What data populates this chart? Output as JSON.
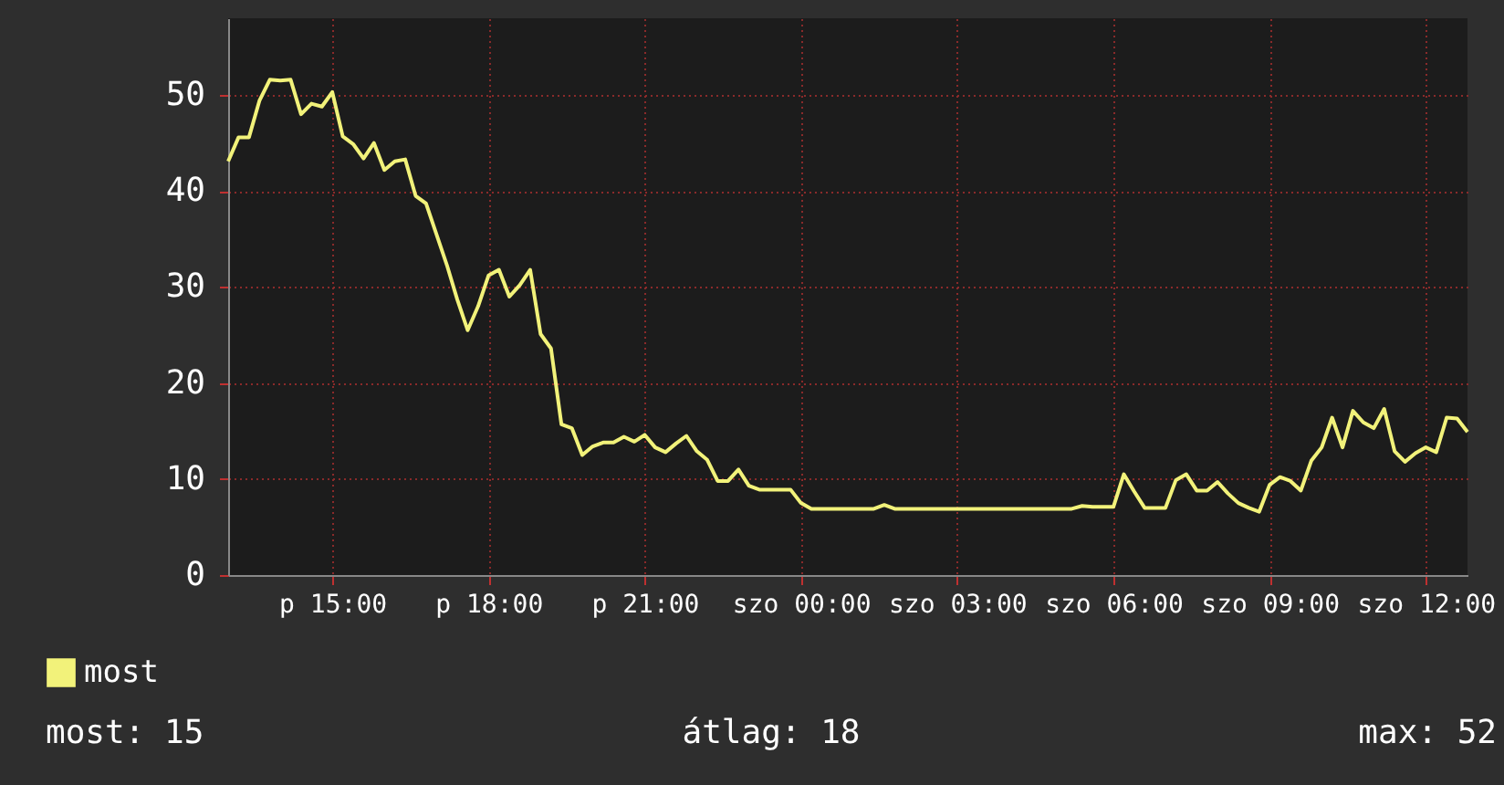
{
  "chart_data": {
    "type": "line",
    "categories": [
      null,
      null,
      null,
      null,
      null,
      null,
      null,
      null,
      null,
      null,
      "p 15:00",
      null,
      null,
      null,
      null,
      null,
      null,
      null,
      null,
      null,
      null,
      null,
      null,
      null,
      null,
      "p 18:00",
      null,
      null,
      null,
      null,
      null,
      null,
      null,
      null,
      null,
      null,
      null,
      null,
      null,
      null,
      "p 21:00",
      null,
      null,
      null,
      null,
      null,
      null,
      null,
      null,
      null,
      null,
      null,
      null,
      null,
      null,
      "szo 00:00",
      null,
      null,
      null,
      null,
      null,
      null,
      null,
      null,
      null,
      null,
      null,
      null,
      null,
      null,
      "szo 03:00",
      null,
      null,
      null,
      null,
      null,
      null,
      null,
      null,
      null,
      null,
      null,
      null,
      null,
      null,
      "szo 06:00",
      null,
      null,
      null,
      null,
      null,
      null,
      null,
      null,
      null,
      null,
      null,
      null,
      null,
      null,
      "szo 09:00",
      null,
      null,
      null,
      null,
      null,
      null,
      null,
      null,
      null,
      null,
      null,
      null,
      null,
      null,
      "szo 12:00",
      null,
      null,
      null,
      null
    ],
    "series": [
      {
        "name": "most",
        "color": "#f2f27a",
        "values": [
          43.1,
          45.6,
          45.6,
          49.4,
          51.6,
          51.5,
          51.6,
          48.0,
          49.1,
          48.8,
          50.3,
          45.7,
          44.9,
          43.4,
          45.0,
          42.2,
          43.1,
          43.3,
          39.5,
          38.7,
          35.5,
          32.3,
          28.7,
          25.5,
          28.0,
          31.2,
          31.8,
          29.0,
          30.2,
          31.8,
          25.1,
          23.6,
          15.7,
          15.3,
          12.5,
          13.4,
          13.8,
          13.8,
          14.4,
          13.9,
          14.6,
          13.3,
          12.8,
          13.7,
          14.5,
          12.9,
          12.0,
          9.8,
          9.8,
          11.0,
          9.3,
          8.9,
          8.9,
          8.9,
          8.9,
          7.5,
          6.9,
          6.9,
          6.9,
          6.9,
          6.9,
          6.9,
          6.9,
          7.3,
          6.9,
          6.9,
          6.9,
          6.9,
          6.9,
          6.9,
          6.9,
          6.9,
          6.9,
          6.9,
          6.9,
          6.9,
          6.9,
          6.9,
          6.9,
          6.9,
          6.9,
          6.9,
          7.2,
          7.1,
          7.1,
          7.1,
          10.5,
          8.7,
          7.0,
          7.0,
          7.0,
          9.9,
          10.5,
          8.8,
          8.8,
          9.7,
          8.5,
          7.5,
          7.0,
          6.6,
          9.4,
          10.2,
          9.8,
          8.8,
          11.9,
          13.3,
          16.4,
          13.3,
          17.1,
          15.9,
          15.3,
          17.3,
          12.9,
          11.8,
          12.7,
          13.3,
          12.8,
          16.4,
          16.3,
          14.9
        ]
      }
    ],
    "ylim": [
      0,
      58
    ],
    "yticks": [
      0,
      10,
      20,
      30,
      40,
      50
    ],
    "grid": true,
    "legend": "bottom left",
    "marker": "none",
    "line_style": "solid",
    "annotations": [
      "most: 15",
      "átlag: 18",
      "max: 52"
    ]
  }
}
